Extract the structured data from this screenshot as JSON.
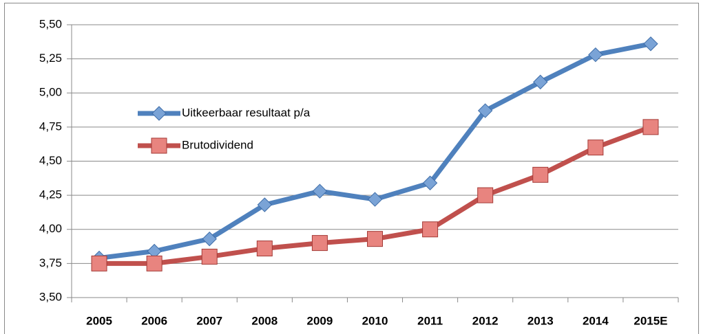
{
  "chart_data": {
    "type": "line",
    "categories": [
      "2005",
      "2006",
      "2007",
      "2008",
      "2009",
      "2010",
      "2011",
      "2012",
      "2013",
      "2014",
      "2015E"
    ],
    "series": [
      {
        "name": "Uitkeerbaar resultaat p/a",
        "color": "#4f81bd",
        "marker": "diamond",
        "values": [
          3.79,
          3.84,
          3.93,
          4.18,
          4.28,
          4.22,
          4.34,
          4.87,
          5.08,
          5.28,
          5.36
        ]
      },
      {
        "name": "Brutodividend",
        "color": "#c0504d",
        "marker": "square",
        "values": [
          3.75,
          3.75,
          3.8,
          3.86,
          3.9,
          3.93,
          4.0,
          4.25,
          4.4,
          4.6,
          4.75
        ]
      }
    ],
    "ylim": [
      3.5,
      5.5
    ],
    "yticks": [
      {
        "value": 3.5,
        "label": "3,50"
      },
      {
        "value": 3.75,
        "label": "3,75"
      },
      {
        "value": 4,
        "label": "4,00"
      },
      {
        "value": 4.25,
        "label": "4,25"
      },
      {
        "value": 4.5,
        "label": "4,50"
      },
      {
        "value": 4.75,
        "label": "4,75"
      },
      {
        "value": 5,
        "label": "5,00"
      },
      {
        "value": 5.25,
        "label": "5,25"
      },
      {
        "value": 5.5,
        "label": "5,50"
      }
    ],
    "grid": true
  }
}
